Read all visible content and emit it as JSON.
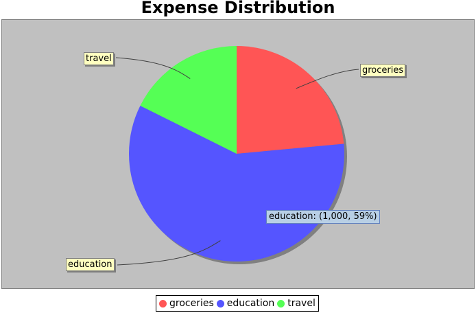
{
  "chart_data": {
    "type": "pie",
    "title": "Expense Distribution",
    "slices": [
      {
        "label": "groceries",
        "value": 400,
        "color": "#ff5555"
      },
      {
        "label": "education",
        "value": 1000,
        "color": "#5555ff"
      },
      {
        "label": "travel",
        "value": 300,
        "color": "#55ff55"
      }
    ],
    "legend": {
      "position": "bottom"
    }
  },
  "tooltip": {
    "text": "education: (1,000, 59%)"
  }
}
